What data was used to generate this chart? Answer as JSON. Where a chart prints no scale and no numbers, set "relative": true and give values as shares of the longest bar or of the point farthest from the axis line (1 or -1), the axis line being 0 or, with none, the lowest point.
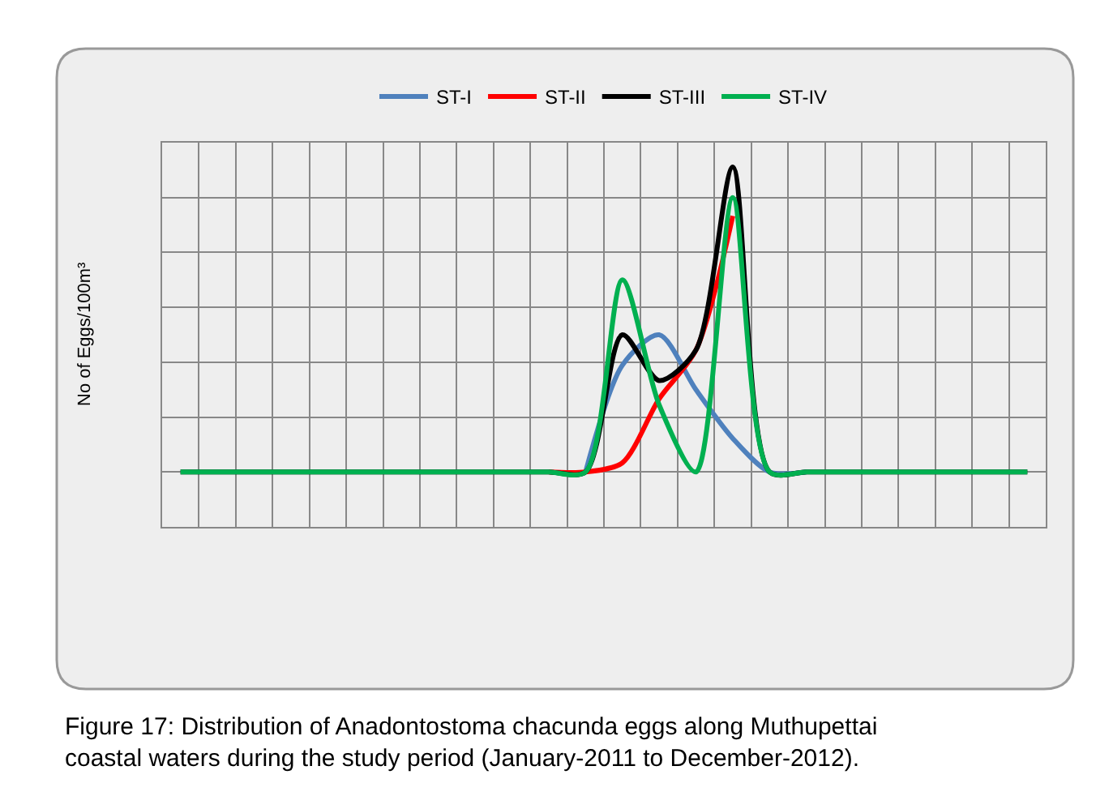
{
  "chart_data": {
    "type": "line",
    "relative": true,
    "ylabel": "No of Eggs/100m³",
    "categories": [
      null,
      null,
      null,
      null,
      null,
      null,
      null,
      null,
      null,
      null,
      null,
      null,
      null,
      null,
      null,
      null,
      null,
      null,
      null,
      null,
      null,
      null,
      null,
      null
    ],
    "series": [
      {
        "name": "ST-I",
        "color": "#4f81bd",
        "values": [
          null,
          null,
          null,
          null,
          null,
          null,
          null,
          null,
          null,
          null,
          null,
          0,
          0.35,
          0.45,
          0.27,
          0.11,
          0,
          0,
          null,
          null,
          null,
          null,
          null,
          null
        ]
      },
      {
        "name": "ST-II",
        "color": "#ff0000",
        "values": [
          null,
          null,
          null,
          null,
          null,
          null,
          null,
          null,
          null,
          null,
          0,
          0,
          0.03,
          0.24,
          0.4,
          0.84,
          null,
          null,
          null,
          null,
          null,
          null,
          null,
          null
        ]
      },
      {
        "name": "ST-III",
        "color": "#000000",
        "values": [
          0,
          0,
          0,
          0,
          0,
          0,
          0,
          0,
          0,
          0,
          0,
          0,
          0.45,
          0.3,
          0.4,
          1,
          0,
          0,
          0,
          0,
          0,
          0,
          0,
          0
        ]
      },
      {
        "name": "ST-IV",
        "color": "#00b050",
        "values": [
          0,
          0,
          0,
          0,
          0,
          0,
          0,
          0,
          0,
          0,
          0,
          0,
          0.63,
          0.22,
          0,
          0.9,
          0,
          0,
          0,
          0,
          0,
          0,
          0,
          0
        ]
      }
    ],
    "grid": true,
    "legend": "top",
    "marker": "none",
    "line_style": "solid",
    "annotations": [
      "Figure 17: Distribution of Anadontostoma chacunda eggs along Muthupettai coastal waters during the study period (January-2011 to December-2012)."
    ]
  }
}
